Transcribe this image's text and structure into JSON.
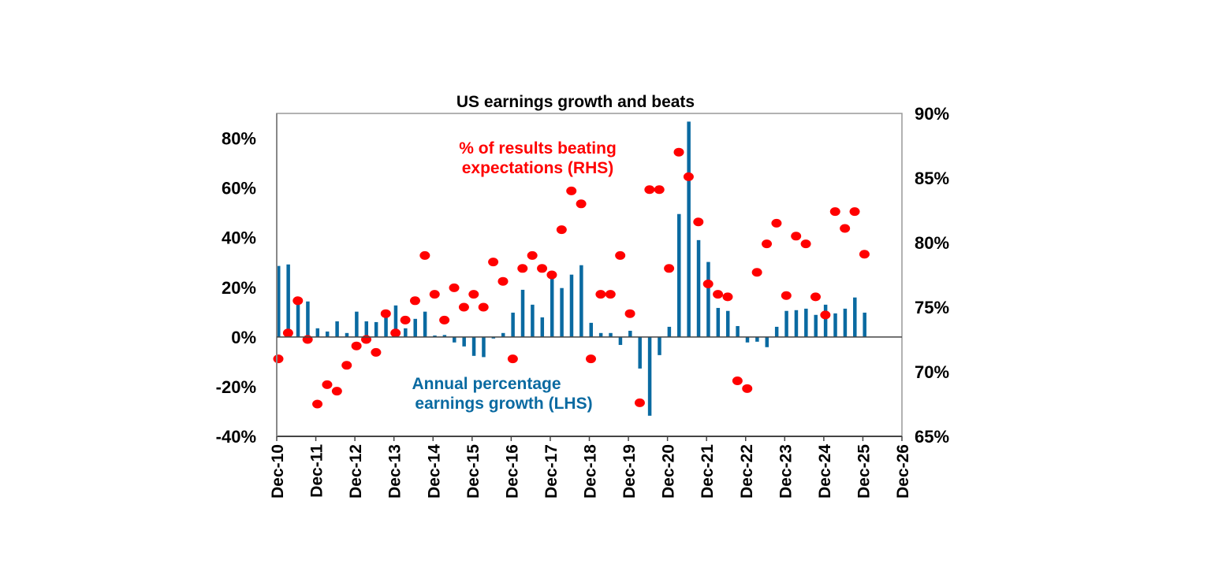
{
  "chart_data": {
    "type": "bar+scatter",
    "title": "US earnings growth and beats",
    "x_ticks": [
      "Dec-10",
      "Dec-11",
      "Dec-12",
      "Dec-13",
      "Dec-14",
      "Dec-15",
      "Dec-16",
      "Dec-17",
      "Dec-18",
      "Dec-19",
      "Dec-20",
      "Dec-21",
      "Dec-22",
      "Dec-23",
      "Dec-24",
      "Dec-25",
      "Dec-26"
    ],
    "left_axis": {
      "ylim": [
        -40,
        90
      ],
      "ticks": [
        -40,
        -20,
        0,
        20,
        40,
        60,
        80
      ],
      "tick_labels": [
        "-40%",
        "-20%",
        "0%",
        "20%",
        "40%",
        "60%",
        "80%"
      ]
    },
    "right_axis": {
      "ylim": [
        65,
        90
      ],
      "ticks": [
        65,
        70,
        75,
        80,
        85,
        90
      ],
      "tick_labels": [
        "65%",
        "70%",
        "75%",
        "80%",
        "85%",
        "90%"
      ]
    },
    "x_start": "Dec-10",
    "x_frequency": "quarterly",
    "grid": false,
    "colors": {
      "bars": "#0a6aa1",
      "dots": "#ff0000",
      "axis": "#444444"
    },
    "series": [
      {
        "name": "Annual percentage earnings growth (LHS)",
        "type": "bar",
        "axis": "left",
        "values": [
          28.6,
          29.2,
          14.6,
          14.3,
          3.5,
          2.2,
          6.3,
          1.6,
          10.2,
          6.3,
          6.0,
          8.9,
          12.7,
          3.5,
          7.3,
          10.2,
          0.6,
          0.8,
          -2.2,
          -3.8,
          -7.6,
          -8.1,
          -0.6,
          1.6,
          9.8,
          19.0,
          13.0,
          7.9,
          23.8,
          19.7,
          25.1,
          28.9,
          5.7,
          1.6,
          1.6,
          -3.2,
          2.5,
          -12.7,
          -31.7,
          -7.3,
          4.1,
          49.5,
          86.7,
          39.0,
          30.2,
          11.7,
          10.5,
          4.4,
          -2.2,
          -1.9,
          -4.1,
          4.1,
          10.5,
          10.8,
          11.4,
          8.9,
          13.0,
          9.5,
          11.4,
          15.9,
          9.8
        ]
      },
      {
        "name": "% of results beating expectations (RHS)",
        "type": "scatter",
        "axis": "right",
        "values": [
          71.0,
          73.0,
          75.5,
          72.5,
          67.5,
          69.0,
          68.5,
          70.5,
          72.0,
          72.5,
          71.5,
          74.5,
          73.0,
          74.0,
          75.5,
          79.0,
          76.0,
          74.0,
          76.5,
          75.0,
          76.0,
          75.0,
          78.5,
          77.0,
          71.0,
          78.0,
          79.0,
          78.0,
          77.5,
          81.0,
          84.0,
          83.0,
          71.0,
          76.0,
          76.0,
          79.0,
          74.5,
          67.6,
          84.1,
          84.1,
          78.0,
          87.0,
          85.1,
          81.6,
          76.8,
          76.0,
          75.8,
          69.3,
          68.7,
          77.7,
          79.9,
          81.5,
          75.9,
          80.5,
          79.9,
          75.8,
          74.4,
          82.4,
          81.1,
          82.4,
          79.1
        ]
      }
    ],
    "annotations": {
      "beats_label": [
        "% of results beating",
        "expectations (RHS)"
      ],
      "growth_label": [
        "Annual percentage",
        "earnings growth (LHS)"
      ]
    }
  }
}
